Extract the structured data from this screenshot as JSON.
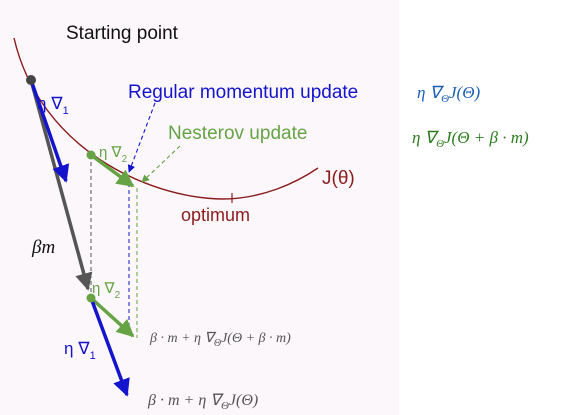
{
  "labels": {
    "starting_point": "Starting point",
    "regular_momentum_update": "Regular momentum update",
    "nesterov_update": "Nesterov update",
    "cost_function": "J(θ)",
    "optimum": "optimum",
    "beta_m": "βm",
    "eta": "η",
    "nabla": "∇",
    "sub_1": "1",
    "sub_2": "2"
  },
  "formulas": {
    "regular_gradient": {
      "base": "η ∇",
      "sub": "Θ",
      "rest": "J(Θ)"
    },
    "nesterov_gradient": {
      "base": "η ∇",
      "sub": "Θ",
      "rest": "J(Θ + β · m)"
    },
    "nesterov_sum": {
      "base": "β · m + η ∇",
      "sub": "Θ",
      "rest": "J(Θ + β · m)"
    },
    "regular_sum": {
      "base": "β · m + η ∇",
      "sub": "Θ",
      "rest": "J(Θ)"
    }
  },
  "colors": {
    "curve": "#8b1c1c",
    "blue": "#1414cc",
    "green": "#66a344",
    "gray": "#555555",
    "formula_blue": "#1a5fb4",
    "formula_green": "#2e7d20",
    "panel_bg": "#fbf7fb"
  }
}
